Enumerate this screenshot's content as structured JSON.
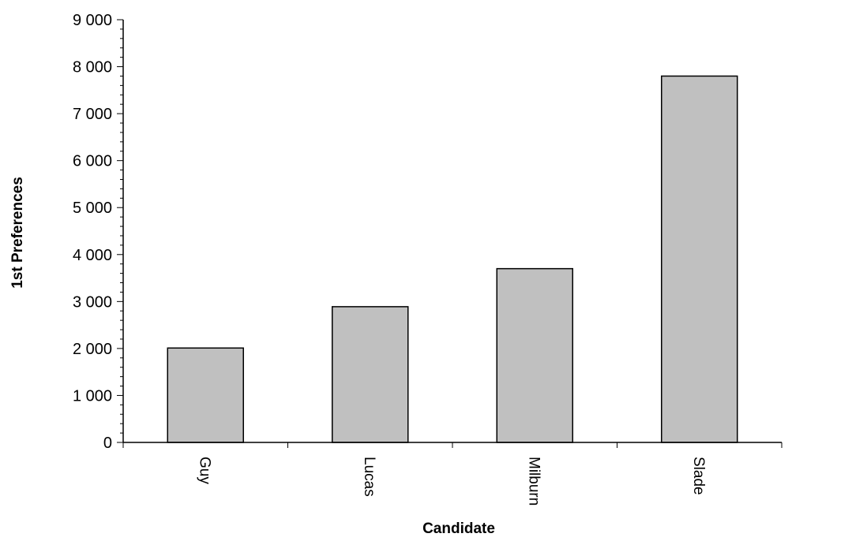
{
  "chart_data": {
    "type": "bar",
    "title": "",
    "xlabel": "Candidate",
    "ylabel": "1st Preferences",
    "categories": [
      "Guy",
      "Lucas",
      "Milburn",
      "Slade"
    ],
    "values": [
      2010,
      2890,
      3700,
      7800
    ],
    "ylim": [
      0,
      9000
    ],
    "yticks": [
      0,
      1000,
      2000,
      3000,
      4000,
      5000,
      6000,
      7000,
      8000,
      9000
    ],
    "ytick_labels": [
      "0",
      "1 000",
      "2 000",
      "3 000",
      "4 000",
      "5 000",
      "6 000",
      "7 000",
      "8 000",
      "9 000"
    ],
    "grid": false,
    "legend": "none",
    "bar_color": "#c0c0c0",
    "bar_edge_color": "#000000"
  }
}
